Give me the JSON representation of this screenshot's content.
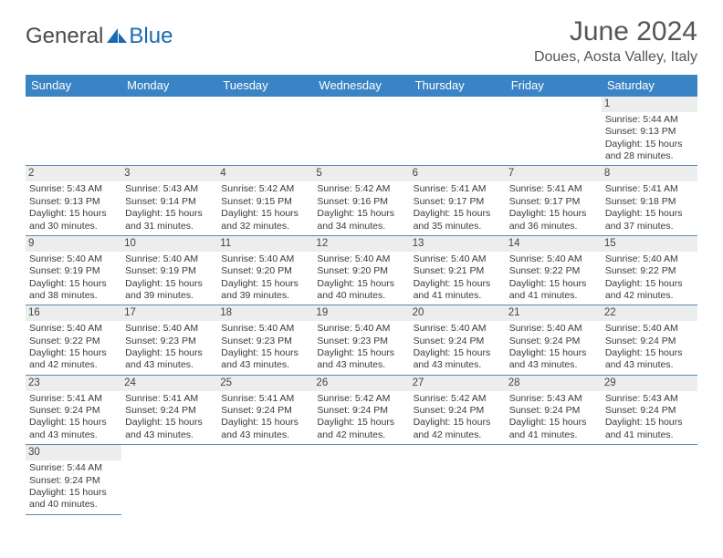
{
  "logo": {
    "text1": "General",
    "text2": "Blue"
  },
  "title": "June 2024",
  "location": "Doues, Aosta Valley, Italy",
  "colors": {
    "header_bg": "#3a84c5",
    "border": "#5a8ab8",
    "daynum_bg": "#eceded",
    "empty_bg": "#f1f1f1"
  },
  "dayHeaders": [
    "Sunday",
    "Monday",
    "Tuesday",
    "Wednesday",
    "Thursday",
    "Friday",
    "Saturday"
  ],
  "weeks": [
    [
      null,
      null,
      null,
      null,
      null,
      null,
      {
        "n": "1",
        "sr": "5:44 AM",
        "ss": "9:13 PM",
        "dl": "15 hours and 28 minutes."
      }
    ],
    [
      {
        "n": "2",
        "sr": "5:43 AM",
        "ss": "9:13 PM",
        "dl": "15 hours and 30 minutes."
      },
      {
        "n": "3",
        "sr": "5:43 AM",
        "ss": "9:14 PM",
        "dl": "15 hours and 31 minutes."
      },
      {
        "n": "4",
        "sr": "5:42 AM",
        "ss": "9:15 PM",
        "dl": "15 hours and 32 minutes."
      },
      {
        "n": "5",
        "sr": "5:42 AM",
        "ss": "9:16 PM",
        "dl": "15 hours and 34 minutes."
      },
      {
        "n": "6",
        "sr": "5:41 AM",
        "ss": "9:17 PM",
        "dl": "15 hours and 35 minutes."
      },
      {
        "n": "7",
        "sr": "5:41 AM",
        "ss": "9:17 PM",
        "dl": "15 hours and 36 minutes."
      },
      {
        "n": "8",
        "sr": "5:41 AM",
        "ss": "9:18 PM",
        "dl": "15 hours and 37 minutes."
      }
    ],
    [
      {
        "n": "9",
        "sr": "5:40 AM",
        "ss": "9:19 PM",
        "dl": "15 hours and 38 minutes."
      },
      {
        "n": "10",
        "sr": "5:40 AM",
        "ss": "9:19 PM",
        "dl": "15 hours and 39 minutes."
      },
      {
        "n": "11",
        "sr": "5:40 AM",
        "ss": "9:20 PM",
        "dl": "15 hours and 39 minutes."
      },
      {
        "n": "12",
        "sr": "5:40 AM",
        "ss": "9:20 PM",
        "dl": "15 hours and 40 minutes."
      },
      {
        "n": "13",
        "sr": "5:40 AM",
        "ss": "9:21 PM",
        "dl": "15 hours and 41 minutes."
      },
      {
        "n": "14",
        "sr": "5:40 AM",
        "ss": "9:22 PM",
        "dl": "15 hours and 41 minutes."
      },
      {
        "n": "15",
        "sr": "5:40 AM",
        "ss": "9:22 PM",
        "dl": "15 hours and 42 minutes."
      }
    ],
    [
      {
        "n": "16",
        "sr": "5:40 AM",
        "ss": "9:22 PM",
        "dl": "15 hours and 42 minutes."
      },
      {
        "n": "17",
        "sr": "5:40 AM",
        "ss": "9:23 PM",
        "dl": "15 hours and 43 minutes."
      },
      {
        "n": "18",
        "sr": "5:40 AM",
        "ss": "9:23 PM",
        "dl": "15 hours and 43 minutes."
      },
      {
        "n": "19",
        "sr": "5:40 AM",
        "ss": "9:23 PM",
        "dl": "15 hours and 43 minutes."
      },
      {
        "n": "20",
        "sr": "5:40 AM",
        "ss": "9:24 PM",
        "dl": "15 hours and 43 minutes."
      },
      {
        "n": "21",
        "sr": "5:40 AM",
        "ss": "9:24 PM",
        "dl": "15 hours and 43 minutes."
      },
      {
        "n": "22",
        "sr": "5:40 AM",
        "ss": "9:24 PM",
        "dl": "15 hours and 43 minutes."
      }
    ],
    [
      {
        "n": "23",
        "sr": "5:41 AM",
        "ss": "9:24 PM",
        "dl": "15 hours and 43 minutes."
      },
      {
        "n": "24",
        "sr": "5:41 AM",
        "ss": "9:24 PM",
        "dl": "15 hours and 43 minutes."
      },
      {
        "n": "25",
        "sr": "5:41 AM",
        "ss": "9:24 PM",
        "dl": "15 hours and 43 minutes."
      },
      {
        "n": "26",
        "sr": "5:42 AM",
        "ss": "9:24 PM",
        "dl": "15 hours and 42 minutes."
      },
      {
        "n": "27",
        "sr": "5:42 AM",
        "ss": "9:24 PM",
        "dl": "15 hours and 42 minutes."
      },
      {
        "n": "28",
        "sr": "5:43 AM",
        "ss": "9:24 PM",
        "dl": "15 hours and 41 minutes."
      },
      {
        "n": "29",
        "sr": "5:43 AM",
        "ss": "9:24 PM",
        "dl": "15 hours and 41 minutes."
      }
    ],
    [
      {
        "n": "30",
        "sr": "5:44 AM",
        "ss": "9:24 PM",
        "dl": "15 hours and 40 minutes."
      },
      null,
      null,
      null,
      null,
      null,
      null
    ]
  ],
  "labels": {
    "sunrise": "Sunrise: ",
    "sunset": "Sunset: ",
    "daylight": "Daylight: "
  }
}
